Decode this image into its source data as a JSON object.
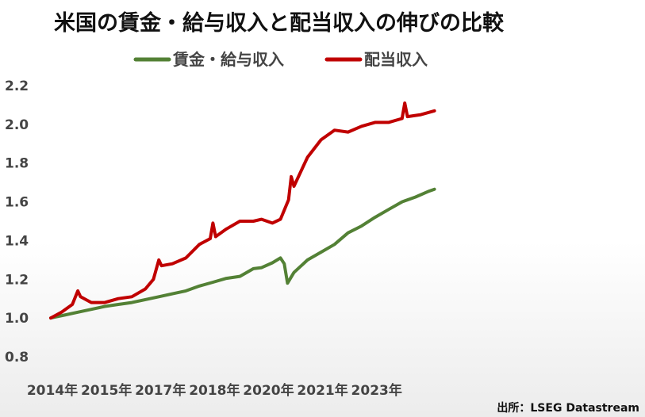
{
  "chart_data": {
    "type": "line",
    "title": "米国の賃金・給与収入と配当収入の伸びの比較",
    "source": "出所：LSEG Datastream",
    "ylim": [
      0.8,
      2.2
    ],
    "y_ticks": [
      "0.8",
      "1.0",
      "1.2",
      "1.4",
      "1.6",
      "1.8",
      "2.0",
      "2.2"
    ],
    "xlim": [
      2014.0,
      2024.1
    ],
    "x_ticks": [
      {
        "value": 2014.0,
        "label": "2014年"
      },
      {
        "value": 2015.0,
        "label": "2015年"
      },
      {
        "value": 2016.0,
        "label": "2017年"
      },
      {
        "value": 2017.0,
        "label": "2018年"
      },
      {
        "value": 2018.0,
        "label": "2020年"
      },
      {
        "value": 2019.0,
        "label": "2021年"
      },
      {
        "value": 2020.0,
        "label": "2023年"
      }
    ],
    "grid": false,
    "legend_position": "top-center",
    "series": [
      {
        "name": "賃金・給与収入",
        "color": "#538135",
        "points": [
          [
            2014.0,
            1.0
          ],
          [
            2014.25,
            1.015
          ],
          [
            2014.5,
            1.03
          ],
          [
            2014.75,
            1.045
          ],
          [
            2015.0,
            1.06
          ],
          [
            2015.25,
            1.07
          ],
          [
            2015.5,
            1.08
          ],
          [
            2015.75,
            1.095
          ],
          [
            2016.0,
            1.11
          ],
          [
            2016.25,
            1.125
          ],
          [
            2016.5,
            1.14
          ],
          [
            2016.75,
            1.165
          ],
          [
            2017.0,
            1.185
          ],
          [
            2017.25,
            1.205
          ],
          [
            2017.5,
            1.215
          ],
          [
            2017.75,
            1.255
          ],
          [
            2017.9,
            1.26
          ],
          [
            2018.1,
            1.285
          ],
          [
            2018.25,
            1.31
          ],
          [
            2018.32,
            1.28
          ],
          [
            2018.38,
            1.18
          ],
          [
            2018.5,
            1.235
          ],
          [
            2018.75,
            1.3
          ],
          [
            2019.0,
            1.34
          ],
          [
            2019.25,
            1.38
          ],
          [
            2019.5,
            1.44
          ],
          [
            2019.75,
            1.475
          ],
          [
            2020.0,
            1.52
          ],
          [
            2020.25,
            1.56
          ],
          [
            2020.5,
            1.6
          ],
          [
            2020.75,
            1.625
          ],
          [
            2021.0,
            1.655
          ],
          [
            2021.1,
            1.665
          ]
        ]
      },
      {
        "name": "配当収入",
        "color": "#c00000",
        "points": [
          [
            2014.0,
            1.0
          ],
          [
            2014.2,
            1.03
          ],
          [
            2014.4,
            1.07
          ],
          [
            2014.5,
            1.14
          ],
          [
            2014.55,
            1.11
          ],
          [
            2014.75,
            1.08
          ],
          [
            2015.0,
            1.08
          ],
          [
            2015.25,
            1.1
          ],
          [
            2015.5,
            1.11
          ],
          [
            2015.75,
            1.15
          ],
          [
            2015.9,
            1.2
          ],
          [
            2016.0,
            1.3
          ],
          [
            2016.05,
            1.27
          ],
          [
            2016.25,
            1.28
          ],
          [
            2016.5,
            1.31
          ],
          [
            2016.75,
            1.38
          ],
          [
            2016.95,
            1.41
          ],
          [
            2017.0,
            1.49
          ],
          [
            2017.05,
            1.42
          ],
          [
            2017.25,
            1.46
          ],
          [
            2017.5,
            1.5
          ],
          [
            2017.75,
            1.5
          ],
          [
            2017.9,
            1.51
          ],
          [
            2018.1,
            1.49
          ],
          [
            2018.25,
            1.51
          ],
          [
            2018.4,
            1.61
          ],
          [
            2018.45,
            1.73
          ],
          [
            2018.5,
            1.68
          ],
          [
            2018.75,
            1.83
          ],
          [
            2019.0,
            1.92
          ],
          [
            2019.25,
            1.97
          ],
          [
            2019.5,
            1.96
          ],
          [
            2019.75,
            1.99
          ],
          [
            2020.0,
            2.01
          ],
          [
            2020.25,
            2.01
          ],
          [
            2020.5,
            2.03
          ],
          [
            2020.55,
            2.11
          ],
          [
            2020.6,
            2.04
          ],
          [
            2020.85,
            2.05
          ],
          [
            2021.1,
            2.07
          ]
        ]
      }
    ]
  }
}
